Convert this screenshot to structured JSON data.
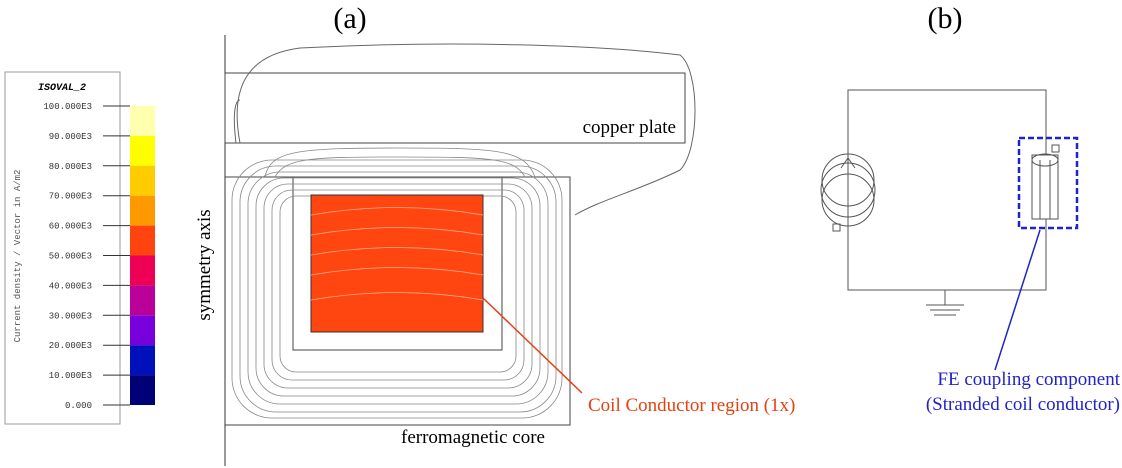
{
  "panels": {
    "a": "(a)",
    "b": "(b)"
  },
  "legend": {
    "title": "ISOVAL_2",
    "axis_label": "Current density / Vector in A/m2",
    "ticks": [
      "100.000E3",
      "90.000E3",
      "80.000E3",
      "70.000E3",
      "60.000E3",
      "50.000E3",
      "40.000E3",
      "30.000E3",
      "20.000E3",
      "10.000E3",
      "0.000"
    ],
    "colors": [
      "#ffffb0",
      "#ffff00",
      "#ffcc00",
      "#ff9900",
      "#ff4410",
      "#ee0055",
      "#bb0099",
      "#7700dd",
      "#0010bb",
      "#000077"
    ]
  },
  "labels": {
    "copper_plate": "copper plate",
    "symmetry_axis": "symmetry axis",
    "core": "ferromagnetic core",
    "coil_region": "Coil Conductor region (1x)",
    "fe_component": "FE coupling component",
    "fe_component_note": "(Stranded coil conductor)"
  }
}
